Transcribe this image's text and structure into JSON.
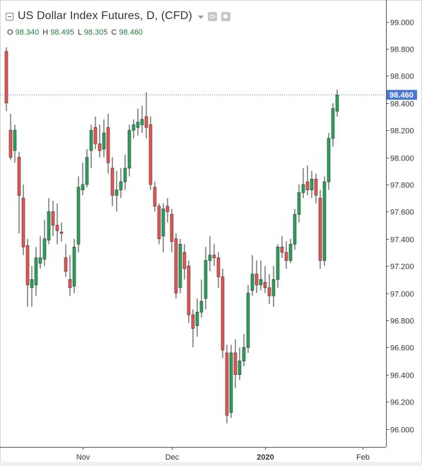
{
  "header": {
    "title": "US Dollar Index Futures, D, (CFD)",
    "ohlc": {
      "o_label": "O",
      "o": "98.340",
      "h_label": "H",
      "h": "98.495",
      "l_label": "L",
      "l": "98.305",
      "c_label": "C",
      "c": "98.460"
    }
  },
  "colors": {
    "up": "#26a65b",
    "down": "#ef5350",
    "last_price_badge": "#4a78d6",
    "price_line": "#4a78d6"
  },
  "chart_data": {
    "type": "candlestick",
    "title": "US Dollar Index Futures, D, (CFD)",
    "ylim": [
      95.82,
      99.12
    ],
    "y_ticks": [
      "99.000",
      "98.800",
      "98.600",
      "98.400",
      "98.200",
      "98.000",
      "97.800",
      "97.600",
      "97.400",
      "97.200",
      "97.000",
      "96.800",
      "96.600",
      "96.400",
      "96.200",
      "96.000"
    ],
    "x_ticks": [
      {
        "label": "Nov",
        "index": 18
      },
      {
        "label": "Dec",
        "index": 39
      },
      {
        "label": "2020",
        "index": 61
      },
      {
        "label": "Feb",
        "index": 84
      }
    ],
    "last_price": "98.460",
    "grid": false,
    "candles": [
      [
        98.78,
        98.4,
        98.81,
        98.34
      ],
      [
        98.2,
        98.0,
        98.32,
        97.98
      ],
      [
        98.05,
        98.2,
        98.24,
        97.96
      ],
      [
        98.0,
        97.72,
        98.04,
        97.44
      ],
      [
        97.7,
        97.34,
        97.8,
        97.28
      ],
      [
        97.35,
        97.06,
        97.4,
        96.9
      ],
      [
        97.04,
        97.1,
        97.2,
        96.9
      ],
      [
        97.06,
        97.26,
        97.34,
        96.98
      ],
      [
        97.22,
        97.26,
        97.42,
        97.18
      ],
      [
        97.25,
        97.4,
        97.54,
        97.2
      ],
      [
        97.39,
        97.6,
        97.7,
        97.36
      ],
      [
        97.6,
        97.5,
        97.68,
        97.42
      ],
      [
        97.5,
        97.46,
        97.66,
        97.36
      ],
      [
        97.45,
        97.44,
        97.52,
        97.38
      ],
      [
        97.26,
        97.16,
        97.36,
        97.12
      ],
      [
        97.1,
        97.04,
        97.28,
        96.98
      ],
      [
        97.05,
        97.34,
        97.4,
        97.0
      ],
      [
        97.36,
        97.78,
        97.86,
        97.3
      ],
      [
        97.76,
        97.8,
        97.96,
        97.72
      ],
      [
        97.8,
        98.0,
        98.06,
        97.78
      ],
      [
        98.05,
        98.2,
        98.24,
        97.92
      ],
      [
        98.22,
        98.1,
        98.3,
        98.06
      ],
      [
        98.1,
        98.05,
        98.24,
        98.0
      ],
      [
        98.06,
        98.18,
        98.28,
        98.0
      ],
      [
        98.22,
        97.96,
        98.32,
        97.88
      ],
      [
        97.92,
        97.72,
        98.0,
        97.64
      ],
      [
        97.72,
        97.76,
        97.9,
        97.6
      ],
      [
        97.76,
        97.82,
        97.92,
        97.7
      ],
      [
        97.82,
        97.92,
        98.02,
        97.76
      ],
      [
        97.92,
        98.2,
        98.24,
        97.86
      ],
      [
        98.2,
        98.24,
        98.28,
        98.14
      ],
      [
        98.22,
        98.26,
        98.36,
        98.16
      ],
      [
        98.24,
        98.28,
        98.38,
        98.18
      ],
      [
        98.3,
        98.22,
        98.48,
        98.14
      ],
      [
        98.24,
        97.8,
        98.3,
        97.76
      ],
      [
        97.78,
        97.64,
        97.82,
        97.6
      ],
      [
        97.64,
        97.4,
        97.66,
        97.36
      ],
      [
        97.42,
        97.62,
        97.66,
        97.3
      ],
      [
        97.64,
        97.6,
        97.7,
        97.52
      ],
      [
        97.58,
        97.38,
        97.62,
        97.3
      ],
      [
        97.4,
        97.0,
        97.44,
        96.96
      ],
      [
        97.04,
        97.36,
        97.4,
        97.0
      ],
      [
        97.3,
        97.18,
        97.36,
        97.1
      ],
      [
        97.2,
        96.84,
        97.24,
        96.78
      ],
      [
        96.84,
        96.74,
        96.88,
        96.6
      ],
      [
        96.76,
        96.86,
        96.96,
        96.68
      ],
      [
        96.86,
        96.94,
        97.1,
        96.82
      ],
      [
        96.96,
        97.24,
        97.34,
        96.88
      ],
      [
        97.24,
        97.28,
        97.42,
        97.16
      ],
      [
        97.28,
        97.26,
        97.36,
        97.2
      ],
      [
        97.26,
        97.12,
        97.3,
        97.04
      ],
      [
        97.12,
        96.58,
        97.18,
        96.52
      ],
      [
        96.56,
        96.1,
        96.62,
        96.04
      ],
      [
        96.12,
        96.56,
        96.62,
        96.08
      ],
      [
        96.56,
        96.4,
        96.66,
        96.3
      ],
      [
        96.4,
        96.5,
        96.6,
        96.36
      ],
      [
        96.5,
        96.6,
        96.7,
        96.46
      ],
      [
        96.6,
        97.0,
        97.06,
        96.56
      ],
      [
        97.02,
        97.14,
        97.28,
        96.98
      ],
      [
        97.14,
        97.06,
        97.24,
        97.0
      ],
      [
        97.06,
        97.1,
        97.24,
        97.02
      ],
      [
        97.08,
        97.04,
        97.2,
        97.0
      ],
      [
        97.04,
        96.98,
        97.14,
        96.92
      ],
      [
        96.98,
        97.1,
        97.2,
        96.9
      ],
      [
        97.1,
        97.34,
        97.36,
        97.04
      ],
      [
        97.34,
        97.3,
        97.42,
        97.26
      ],
      [
        97.3,
        97.24,
        97.38,
        97.18
      ],
      [
        97.24,
        97.36,
        97.4,
        97.22
      ],
      [
        97.36,
        97.58,
        97.62,
        97.32
      ],
      [
        97.58,
        97.74,
        97.8,
        97.52
      ],
      [
        97.74,
        97.8,
        97.92,
        97.7
      ],
      [
        97.82,
        97.76,
        97.94,
        97.72
      ],
      [
        97.76,
        97.84,
        97.9,
        97.7
      ],
      [
        97.84,
        97.72,
        97.88,
        97.66
      ],
      [
        97.7,
        97.24,
        97.76,
        97.18
      ],
      [
        97.24,
        97.82,
        97.86,
        97.2
      ],
      [
        97.82,
        98.14,
        98.18,
        97.76
      ],
      [
        98.14,
        98.36,
        98.4,
        98.08
      ],
      [
        98.34,
        98.46,
        98.5,
        98.3
      ]
    ]
  }
}
